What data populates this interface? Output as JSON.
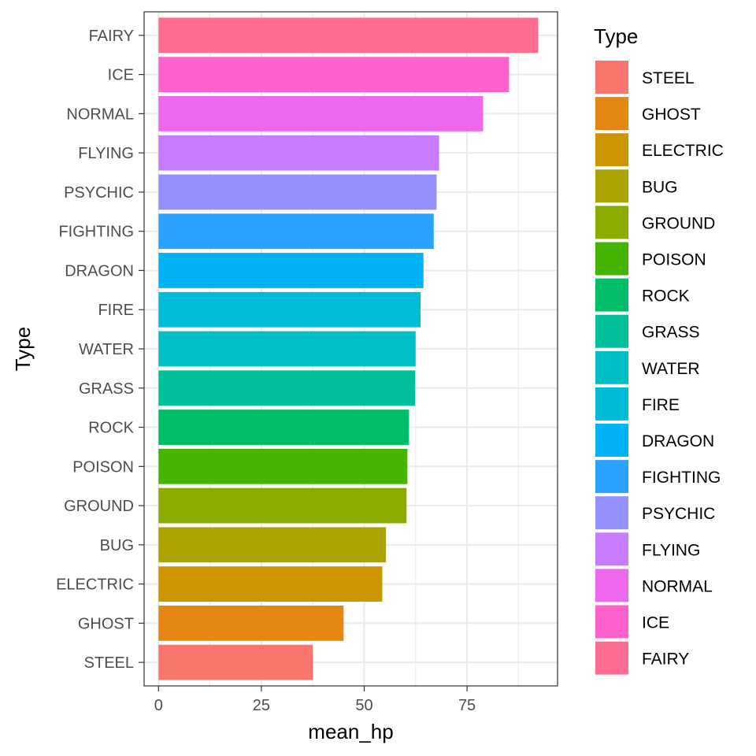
{
  "chart_data": {
    "type": "bar",
    "orientation": "horizontal",
    "xlabel": "mean_hp",
    "ylabel": "Type",
    "xlim": [
      -3.5,
      97
    ],
    "xticks": [
      0,
      25,
      50,
      75
    ],
    "grid": true,
    "legend_placement": "right",
    "legend_title": "Type",
    "categories": [
      "STEEL",
      "GHOST",
      "ELECTRIC",
      "BUG",
      "GROUND",
      "POISON",
      "ROCK",
      "GRASS",
      "WATER",
      "FIRE",
      "DRAGON",
      "FIGHTING",
      "PSYCHIC",
      "FLYING",
      "NORMAL",
      "ICE",
      "FAIRY"
    ],
    "values": [
      37.5,
      45.0,
      54.4,
      55.3,
      60.3,
      60.5,
      60.9,
      62.4,
      62.5,
      63.7,
      64.4,
      66.9,
      67.6,
      68.2,
      78.9,
      85.2,
      92.3
    ],
    "colors": [
      "#F8766D",
      "#E68613",
      "#CD9600",
      "#ABA300",
      "#8CAB00",
      "#44B400",
      "#00BE67",
      "#00C19A",
      "#00BFC4",
      "#00BCD8",
      "#00B3F4",
      "#29A3FF",
      "#9590FF",
      "#C77CFF",
      "#ED68ED",
      "#FF61CC",
      "#FF6C91"
    ]
  }
}
